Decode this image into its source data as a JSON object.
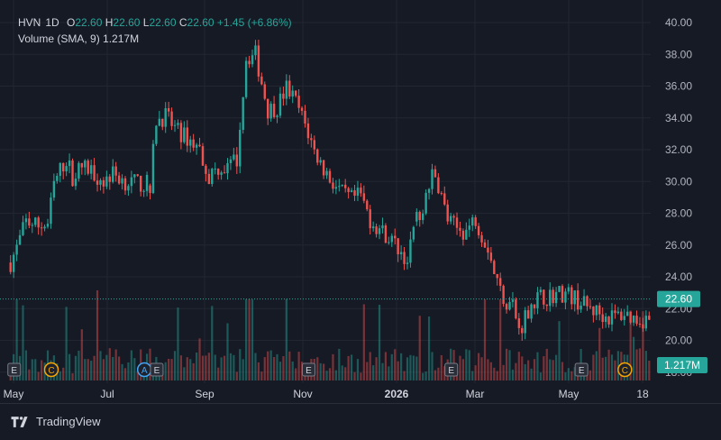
{
  "legend": {
    "symbol": "HVN",
    "interval": "1D",
    "open_label": "O",
    "open": "22.60",
    "high_label": "H",
    "high": "22.60",
    "low_label": "L",
    "low": "22.60",
    "close_label": "C",
    "close": "22.60",
    "change": "+1.45 (+6.86%)",
    "volume_label": "Volume (SMA, 9)",
    "volume_value": "1.217M"
  },
  "footer": {
    "brand": "TradingView"
  },
  "colors": {
    "background": "#161a25",
    "up": "#26a69a",
    "down": "#ef5350",
    "grid": "#222631",
    "text": "#d1d4dc",
    "price_label_bg": "#26a69a",
    "earnings_badge": "#d1d4dc",
    "c_badge": "#f7a600",
    "a_badge": "#42a5f5"
  },
  "chart_data": {
    "type": "candlestick",
    "y_ticks": [
      "40.00",
      "38.00",
      "36.00",
      "34.00",
      "32.00",
      "30.00",
      "28.00",
      "26.00",
      "24.00",
      "22.00",
      "20.00",
      "18.00"
    ],
    "y_tick_values": [
      40,
      38,
      36,
      34,
      32,
      30,
      28,
      26,
      24,
      22,
      20,
      18
    ],
    "ylim": [
      17.5,
      40.5
    ],
    "x_ticks": [
      "May",
      "Jul",
      "Sep",
      "Nov",
      "2026",
      "Mar",
      "May",
      "18"
    ],
    "last_price_label": "22.60",
    "last_volume_label": "1.217M",
    "price_path": [
      [
        0,
        24.9
      ],
      [
        2,
        25.8
      ],
      [
        5,
        27.5
      ],
      [
        9,
        27.2
      ],
      [
        12,
        27.3
      ],
      [
        14,
        29.8
      ],
      [
        16,
        30.7
      ],
      [
        18,
        31.4
      ],
      [
        20,
        30.3
      ],
      [
        23,
        30.9
      ],
      [
        26,
        30.7
      ],
      [
        30,
        30.0
      ],
      [
        33,
        30.5
      ],
      [
        37,
        30.0
      ],
      [
        40,
        29.9
      ],
      [
        45,
        29.8
      ],
      [
        47,
        33.9
      ],
      [
        50,
        34.1
      ],
      [
        54,
        33.1
      ],
      [
        58,
        32.6
      ],
      [
        61,
        32.0
      ],
      [
        64,
        30.3
      ],
      [
        67,
        30.9
      ],
      [
        70,
        30.8
      ],
      [
        73,
        31.4
      ],
      [
        76,
        37.8
      ],
      [
        79,
        38.0
      ],
      [
        83,
        34.5
      ],
      [
        86,
        34.7
      ],
      [
        89,
        35.9
      ],
      [
        92,
        35.0
      ],
      [
        95,
        33.6
      ],
      [
        98,
        31.9
      ],
      [
        101,
        30.8
      ],
      [
        104,
        29.9
      ],
      [
        107,
        29.2
      ],
      [
        110,
        28.9
      ],
      [
        113,
        29.1
      ],
      [
        116,
        27.6
      ],
      [
        119,
        27.0
      ],
      [
        122,
        26.5
      ],
      [
        125,
        25.8
      ],
      [
        128,
        25.0
      ],
      [
        131,
        27.5
      ],
      [
        134,
        28.9
      ],
      [
        136,
        30.3
      ],
      [
        138,
        29.8
      ],
      [
        141,
        27.6
      ],
      [
        144,
        27.0
      ],
      [
        147,
        26.9
      ],
      [
        150,
        27.7
      ],
      [
        152,
        26.7
      ],
      [
        154,
        25.9
      ],
      [
        156,
        24.3
      ],
      [
        159,
        22.6
      ],
      [
        162,
        22.3
      ],
      [
        164,
        20.6
      ],
      [
        166,
        21.5
      ],
      [
        168,
        22.4
      ],
      [
        171,
        22.7
      ],
      [
        174,
        22.8
      ],
      [
        177,
        23.0
      ],
      [
        180,
        22.9
      ],
      [
        183,
        22.5
      ],
      [
        186,
        22.1
      ],
      [
        189,
        21.8
      ],
      [
        192,
        21.5
      ],
      [
        195,
        21.5
      ],
      [
        198,
        21.7
      ],
      [
        201,
        21.4
      ],
      [
        204,
        21.3
      ],
      [
        206,
        21.3
      ]
    ],
    "gaps": [
      45,
      131
    ],
    "events": [
      {
        "type": "E",
        "index": 0
      },
      {
        "type": "C",
        "index": 12
      },
      {
        "type": "A",
        "index": 42
      },
      {
        "type": "E",
        "index": 46
      },
      {
        "type": "E",
        "index": 95
      },
      {
        "type": "E",
        "index": 141
      },
      {
        "type": "E",
        "index": 183
      },
      {
        "type": "C",
        "index": 197
      }
    ]
  }
}
